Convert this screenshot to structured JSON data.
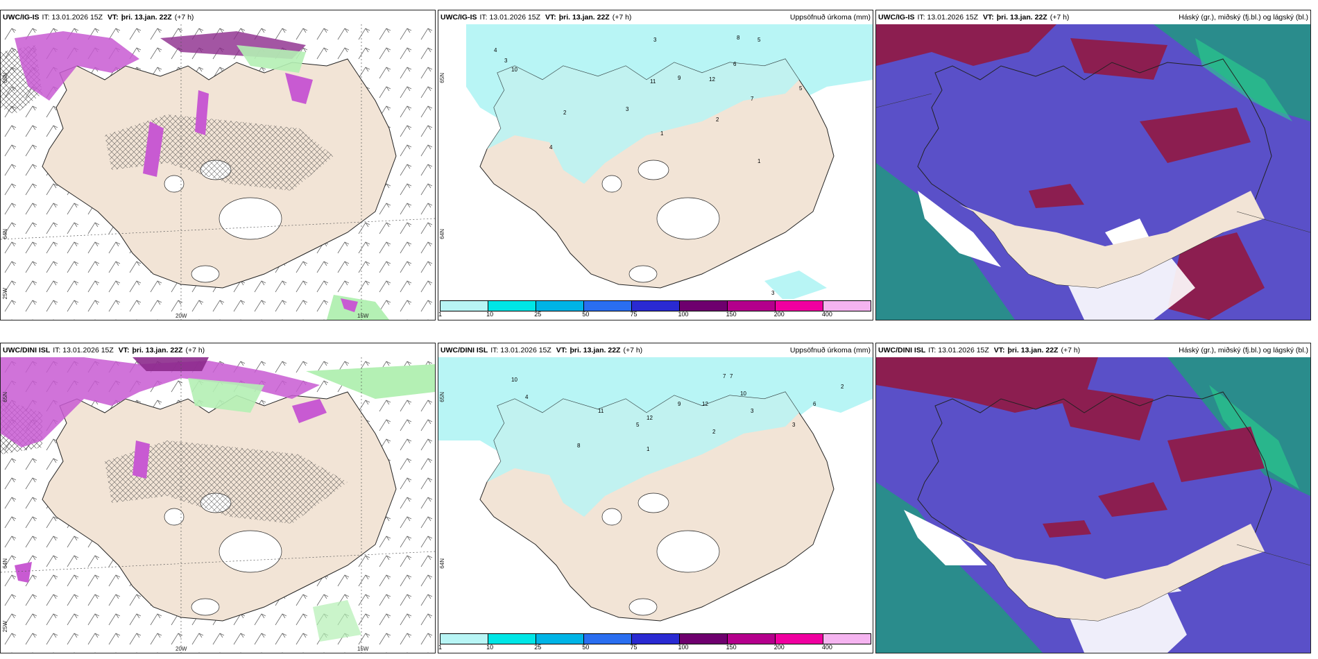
{
  "panels": [
    {
      "model": "UWC/IG-IS",
      "it": "IT: 13.01.2026 15Z",
      "vt_label": "VT:",
      "vt_value": "þri. 13.jan. 22Z",
      "lead": "(+7 h)",
      "right_title": "",
      "coords": [
        "65N",
        "64N",
        "25W",
        "20W",
        "15W"
      ]
    },
    {
      "model": "UWC/IG-IS",
      "it": "IT: 13.01.2026 15Z",
      "vt_label": "VT:",
      "vt_value": "þri. 13.jan. 22Z",
      "lead": "(+7 h)",
      "right_title": "Uppsöfnuð úrkoma (mm)",
      "coords": [
        "65N",
        "64N"
      ]
    },
    {
      "model": "UWC/IG-IS",
      "it": "IT: 13.01.2026 15Z",
      "vt_label": "VT:",
      "vt_value": "þri. 13.jan. 22Z",
      "lead": "(+7 h)",
      "right_title": "Háský (gr.), miðský (fj.bl.) og lágský (bl.)",
      "coords": []
    },
    {
      "model": "UWC/DINI ISL",
      "it": "IT: 13.01.2026 15Z",
      "vt_label": "VT:",
      "vt_value": "þri. 13.jan. 22Z",
      "lead": "(+7 h)",
      "right_title": "",
      "coords": [
        "65N",
        "64N",
        "25W",
        "20W",
        "15W"
      ]
    },
    {
      "model": "UWC/DINI ISL",
      "it": "IT: 13.01.2026 15Z",
      "vt_label": "VT:",
      "vt_value": "þri. 13.jan. 22Z",
      "lead": "(+7 h)",
      "right_title": "Uppsöfnuð úrkoma (mm)",
      "coords": [
        "65N",
        "64N"
      ]
    },
    {
      "model": "UWC/DINI ISL",
      "it": "IT: 13.01.2026 15Z",
      "vt_label": "VT:",
      "vt_value": "þri. 13.jan. 22Z",
      "lead": "(+7 h)",
      "right_title": "Háský (gr.), miðský (fj.bl.) og lágský (bl.)",
      "coords": []
    }
  ],
  "precip_legend": {
    "labels": [
      "1",
      "10",
      "25",
      "50",
      "75",
      "100",
      "150",
      "200",
      "400"
    ],
    "colors": [
      "#b8f5f5",
      "#00e6e6",
      "#00b4e6",
      "#2a6ef0",
      "#2a2ad2",
      "#6e006e",
      "#b4008c",
      "#f000a0",
      "#f5b4f0"
    ]
  },
  "precip_values_top": [
    "3",
    "8",
    "5",
    "4",
    "3",
    "10",
    "11",
    "12",
    "6",
    "2",
    "4",
    "1",
    "5",
    "7",
    "3",
    "2",
    "1",
    "9",
    "3"
  ],
  "precip_values_bottom": [
    "10",
    "12",
    "7",
    "11",
    "5",
    "12",
    "9",
    "3",
    "2",
    "8",
    "6",
    "4",
    "1",
    "7",
    "10",
    "3",
    "2"
  ],
  "colors": {
    "land": "#f2e4d6",
    "precip_light": "#b8f5f5",
    "snow_purple": "#c85ad2",
    "snow_dark": "#8c2a8c",
    "green_field": "#b4f0b4",
    "cloud_high": "#8c1e50",
    "cloud_mid": "#5a50c8",
    "cloud_low": "#2a8c8c"
  }
}
